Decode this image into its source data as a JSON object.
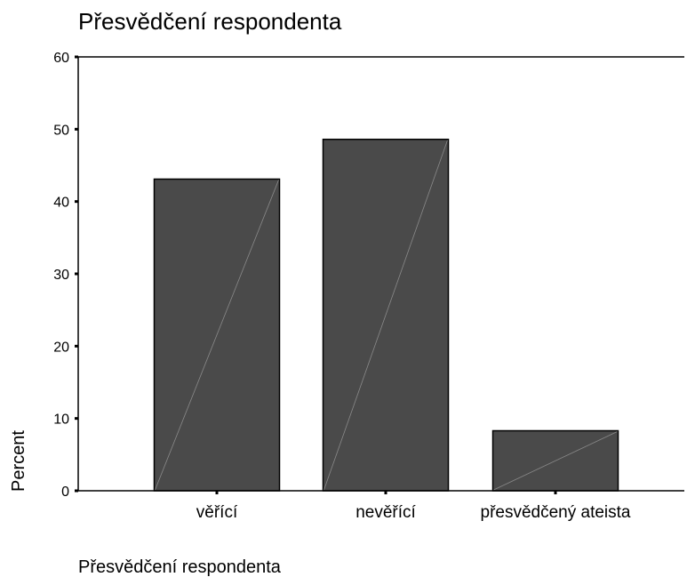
{
  "chart_data": {
    "type": "bar",
    "title": "Přesvědčení respondenta",
    "xlabel": "Přesvědčení respondenta",
    "ylabel": "Percent",
    "categories": [
      "věřící",
      "nevěřící",
      "přesvědčený ateista"
    ],
    "values": [
      43.1,
      48.6,
      8.3
    ],
    "ylim": [
      0,
      60
    ],
    "yticks": [
      0,
      10,
      20,
      30,
      40,
      50,
      60
    ],
    "grid": false,
    "legend": "none",
    "bar_color": "#4a4a4a",
    "bar_border_color": "#000000",
    "bar_hatch_color": "#8a8a8a",
    "axis_color": "#000000",
    "background_color": "#ffffff"
  }
}
